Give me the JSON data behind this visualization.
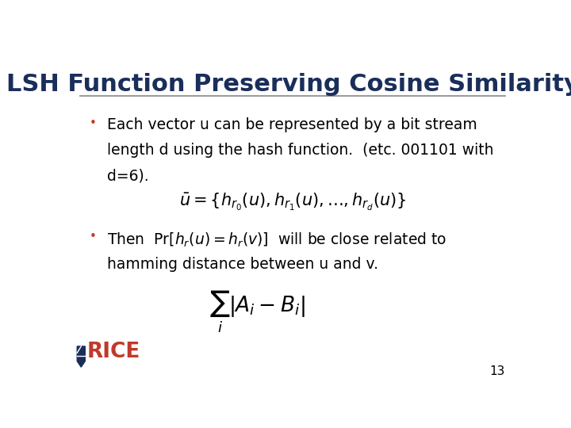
{
  "title": "LSH Function Preserving Cosine Similarity",
  "title_color": "#1a2e5a",
  "title_fontsize": 22,
  "bg_color": "#ffffff",
  "bullet_color": "#c0392b",
  "text_color": "#000000",
  "line_color": "#888888",
  "slide_number": "13",
  "bullet1_text1": "Each vector u can be represented by a bit stream",
  "bullet1_text2": "length d using the hash function.  (etc. 001101 with",
  "bullet1_text3": "d=6).",
  "formula1": "$\\bar{u} = \\{h_{r_0}(u), h_{r_1}(u), \\ldots, h_{r_d}(u)\\}$",
  "bullet2_text1": "will be close related to",
  "bullet2_text2": "hamming distance between u and v.",
  "bullet2_pre": "Then  $\\Pr[h_r(u) = h_r(v)]$",
  "formula2": "$\\sum_i |A_i - B_i|$",
  "font_family": "DejaVu Sans"
}
